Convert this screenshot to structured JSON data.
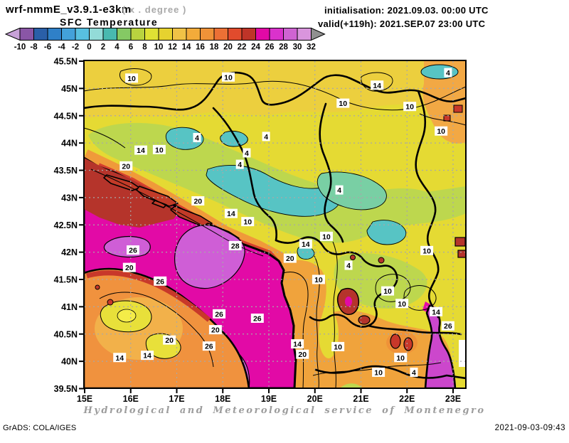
{
  "header": {
    "title": "wrf-nmmE_v3.9.1-e3km",
    "units_note": "( x . degree )",
    "variable": "SFC Temperature",
    "init": "initialisation: 2021.09.03. 00:00 UTC",
    "valid": "valid(+119h): 2021.SEP.07 23:00 UTC"
  },
  "footer": {
    "credit": "Hydrological and Meteorological service of Montenegro",
    "grads": "GrADS: COLA/IGES",
    "timestamp": "2021-09-03-09:43"
  },
  "chart_data": {
    "type": "heatmap",
    "title": "SFC Temperature",
    "model": "wrf-nmmE_v3.9.1-e3km",
    "init_time": "2021.09.03. 00:00 UTC",
    "valid_time": "2021.SEP.07 23:00 UTC",
    "lead_hours": 119,
    "units": "degree C",
    "grid": true,
    "x_axis": {
      "ticks": [
        "15E",
        "16E",
        "17E",
        "18E",
        "19E",
        "20E",
        "21E",
        "22E",
        "23E"
      ],
      "range_deg_east": [
        15,
        23.3
      ]
    },
    "y_axis": {
      "ticks": [
        "45.5N",
        "45N",
        "44.5N",
        "44N",
        "43.5N",
        "43N",
        "42.5N",
        "42N",
        "41.5N",
        "41N",
        "40.5N",
        "40N",
        "39.5N"
      ],
      "range_deg_north": [
        39.5,
        45.5
      ]
    },
    "colorbar": {
      "tick_values": [
        -10,
        -8,
        -6,
        -4,
        -2,
        0,
        2,
        4,
        6,
        8,
        10,
        12,
        14,
        16,
        18,
        20,
        22,
        24,
        26,
        28,
        30,
        32
      ],
      "cell_colors": [
        "#8a56a6",
        "#2a5fa8",
        "#2f80c8",
        "#43a1da",
        "#58c0e0",
        "#93dbd8",
        "#48b9b0",
        "#85c964",
        "#b9d33f",
        "#dfe134",
        "#e6d22f",
        "#f0c246",
        "#f3ab3a",
        "#ef9238",
        "#ec7035",
        "#e14b2d",
        "#bf3428",
        "#e209a6",
        "#da32cc",
        "#cf63d2",
        "#d995dd"
      ],
      "below_color": "#c8a2d8",
      "above_color": "#909090"
    },
    "contour_labels_degC": [
      {
        "lon": 16.02,
        "lat": 45.19,
        "t": 10
      },
      {
        "lon": 18.12,
        "lat": 45.21,
        "t": 10
      },
      {
        "lon": 20.61,
        "lat": 44.73,
        "t": 10
      },
      {
        "lon": 22.06,
        "lat": 44.67,
        "t": 10
      },
      {
        "lon": 21.35,
        "lat": 45.06,
        "t": 14
      },
      {
        "lon": 22.89,
        "lat": 45.29,
        "t": 4
      },
      {
        "lon": 17.44,
        "lat": 44.1,
        "t": 4
      },
      {
        "lon": 18.94,
        "lat": 44.12,
        "t": 4
      },
      {
        "lon": 18.52,
        "lat": 43.82,
        "t": 4
      },
      {
        "lon": 18.37,
        "lat": 43.61,
        "t": 4
      },
      {
        "lon": 20.53,
        "lat": 43.14,
        "t": 4
      },
      {
        "lon": 16.22,
        "lat": 43.87,
        "t": 14
      },
      {
        "lon": 16.62,
        "lat": 43.88,
        "t": 10
      },
      {
        "lon": 15.9,
        "lat": 43.58,
        "t": 20
      },
      {
        "lon": 17.46,
        "lat": 42.94,
        "t": 20
      },
      {
        "lon": 18.18,
        "lat": 42.71,
        "t": 14
      },
      {
        "lon": 18.54,
        "lat": 42.56,
        "t": 10
      },
      {
        "lon": 18.27,
        "lat": 42.12,
        "t": 28
      },
      {
        "lon": 16.05,
        "lat": 42.04,
        "t": 26
      },
      {
        "lon": 15.97,
        "lat": 41.72,
        "t": 20
      },
      {
        "lon": 16.64,
        "lat": 41.47,
        "t": 26
      },
      {
        "lon": 17.92,
        "lat": 40.87,
        "t": 26
      },
      {
        "lon": 17.84,
        "lat": 40.58,
        "t": 20
      },
      {
        "lon": 16.84,
        "lat": 40.39,
        "t": 20
      },
      {
        "lon": 17.7,
        "lat": 40.28,
        "t": 26
      },
      {
        "lon": 15.76,
        "lat": 40.07,
        "t": 14
      },
      {
        "lon": 16.36,
        "lat": 40.11,
        "t": 14
      },
      {
        "lon": 18.75,
        "lat": 40.79,
        "t": 26
      },
      {
        "lon": 19.8,
        "lat": 42.15,
        "t": 14
      },
      {
        "lon": 19.46,
        "lat": 41.89,
        "t": 20
      },
      {
        "lon": 20.08,
        "lat": 41.5,
        "t": 10
      },
      {
        "lon": 20.73,
        "lat": 41.76,
        "t": 4
      },
      {
        "lon": 21.58,
        "lat": 41.29,
        "t": 10
      },
      {
        "lon": 21.89,
        "lat": 41.06,
        "t": 10
      },
      {
        "lon": 22.63,
        "lat": 40.91,
        "t": 14
      },
      {
        "lon": 22.89,
        "lat": 40.65,
        "t": 26
      },
      {
        "lon": 19.62,
        "lat": 40.32,
        "t": 14
      },
      {
        "lon": 19.73,
        "lat": 40.13,
        "t": 20
      },
      {
        "lon": 20.5,
        "lat": 40.27,
        "t": 10
      },
      {
        "lon": 21.86,
        "lat": 40.07,
        "t": 10
      },
      {
        "lon": 22.15,
        "lat": 39.8,
        "t": 4
      },
      {
        "lon": 21.38,
        "lat": 39.8,
        "t": 10
      },
      {
        "lon": 20.25,
        "lat": 42.29,
        "t": 10
      },
      {
        "lon": 22.74,
        "lat": 44.22,
        "t": 10
      },
      {
        "lon": 22.43,
        "lat": 42.03,
        "t": 10
      }
    ],
    "region_colors": {
      "land_yellow": "#e5da33",
      "sea_magenta": "#e20aa6",
      "warm_water_dark_red": "#b5342b",
      "warm_anomaly_orchid": "#cf5ed6",
      "cold_patch_cyan": "#57c4c4",
      "coast_orange": "#f09a3a",
      "coast_red": "#d6402e",
      "italy_orange": "#f0923e",
      "aegean_orchid": "#cc47cc"
    }
  }
}
